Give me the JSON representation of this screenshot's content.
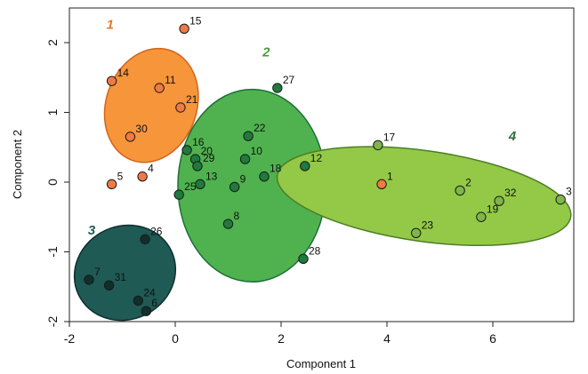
{
  "chart_data": {
    "type": "scatter",
    "title": "",
    "xlabel": "Component 1",
    "ylabel": "Component 2",
    "xlim": [
      -2,
      7.5
    ],
    "ylim": [
      -2,
      2.5
    ],
    "xticks": [
      -2,
      0,
      2,
      4,
      6
    ],
    "yticks": [
      -2,
      -1,
      0,
      1,
      2
    ],
    "xtick_labels": [
      "-2",
      "0",
      "2",
      "4",
      "6"
    ],
    "ytick_labels": [
      "-2",
      "-1",
      "0",
      "1",
      "2"
    ],
    "grid": false,
    "clusters": [
      {
        "label": "1",
        "fill": "#f7953a",
        "stroke": "#d4641a",
        "label_color": "#e07b32",
        "point_color": "#f07a45",
        "ellipse": {
          "cx": -0.45,
          "cy": 1.1,
          "rx": 1.1,
          "ry": 0.65,
          "angle_deg": 71
        }
      },
      {
        "label": "2",
        "fill": "#4fb24e",
        "stroke": "#1e6e3a",
        "label_color": "#4a9a3e",
        "point_color": "#1f7a3d",
        "ellipse": {
          "cx": 1.45,
          "cy": -0.05,
          "rx": 1.4,
          "ry": 1.38,
          "angle_deg": 0
        }
      },
      {
        "label": "3",
        "fill": "#1f5a55",
        "stroke": "#0d2f2c",
        "label_color": "#235e5a",
        "point_color": "#0f2f2b",
        "ellipse": {
          "cx": -0.95,
          "cy": -1.3,
          "rx": 0.97,
          "ry": 0.67,
          "angle_deg": 25
        }
      },
      {
        "label": "4",
        "fill": "#93c946",
        "stroke": "#4d7d26",
        "label_color": "#2f6f3a",
        "point_color": "#7fb64b",
        "ellipse": {
          "cx": 4.7,
          "cy": -0.2,
          "rx": 2.8,
          "ry": 0.65,
          "angle_deg": -8
        }
      }
    ],
    "cluster_label_positions": [
      {
        "label": "1",
        "x": -1.3,
        "y": 2.2
      },
      {
        "label": "2",
        "x": 1.65,
        "y": 1.8
      },
      {
        "label": "3",
        "x": -1.65,
        "y": -0.75
      },
      {
        "label": "4",
        "x": 6.3,
        "y": 0.6
      }
    ],
    "points": [
      {
        "id": "1",
        "cluster": 0,
        "x": 3.9,
        "y": -0.03
      },
      {
        "id": "2",
        "cluster": 3,
        "x": 5.38,
        "y": -0.12
      },
      {
        "id": "3",
        "cluster": 3,
        "x": 7.28,
        "y": -0.25
      },
      {
        "id": "4",
        "cluster": 0,
        "x": -0.62,
        "y": 0.08
      },
      {
        "id": "5",
        "cluster": 0,
        "x": -1.2,
        "y": -0.03
      },
      {
        "id": "6",
        "cluster": 2,
        "x": -0.55,
        "y": -1.85
      },
      {
        "id": "7",
        "cluster": 2,
        "x": -1.63,
        "y": -1.4
      },
      {
        "id": "8",
        "cluster": 1,
        "x": 1.0,
        "y": -0.6
      },
      {
        "id": "9",
        "cluster": 1,
        "x": 1.12,
        "y": -0.07
      },
      {
        "id": "10",
        "cluster": 1,
        "x": 1.32,
        "y": 0.33
      },
      {
        "id": "11",
        "cluster": 0,
        "x": -0.3,
        "y": 1.35
      },
      {
        "id": "12",
        "cluster": 1,
        "x": 2.45,
        "y": 0.23
      },
      {
        "id": "13",
        "cluster": 1,
        "x": 0.47,
        "y": -0.03
      },
      {
        "id": "14",
        "cluster": 0,
        "x": -1.2,
        "y": 1.45
      },
      {
        "id": "15",
        "cluster": 0,
        "x": 0.17,
        "y": 2.2
      },
      {
        "id": "16",
        "cluster": 1,
        "x": 0.22,
        "y": 0.46
      },
      {
        "id": "17",
        "cluster": 3,
        "x": 3.83,
        "y": 0.53
      },
      {
        "id": "18",
        "cluster": 1,
        "x": 1.68,
        "y": 0.08
      },
      {
        "id": "19",
        "cluster": 3,
        "x": 5.78,
        "y": -0.5
      },
      {
        "id": "20",
        "cluster": 1,
        "x": 0.38,
        "y": 0.33
      },
      {
        "id": "21",
        "cluster": 0,
        "x": 0.1,
        "y": 1.07
      },
      {
        "id": "22",
        "cluster": 1,
        "x": 1.38,
        "y": 0.66
      },
      {
        "id": "23",
        "cluster": 3,
        "x": 4.55,
        "y": -0.73
      },
      {
        "id": "24",
        "cluster": 2,
        "x": -0.7,
        "y": -1.7
      },
      {
        "id": "25",
        "cluster": 1,
        "x": 0.07,
        "y": -0.18
      },
      {
        "id": "26",
        "cluster": 2,
        "x": -0.57,
        "y": -0.82
      },
      {
        "id": "27",
        "cluster": 1,
        "x": 1.93,
        "y": 1.35
      },
      {
        "id": "28",
        "cluster": 1,
        "x": 2.42,
        "y": -1.1
      },
      {
        "id": "29",
        "cluster": 1,
        "x": 0.42,
        "y": 0.23
      },
      {
        "id": "30",
        "cluster": 0,
        "x": -0.85,
        "y": 0.65
      },
      {
        "id": "31",
        "cluster": 2,
        "x": -1.25,
        "y": -1.48
      },
      {
        "id": "32",
        "cluster": 3,
        "x": 6.12,
        "y": -0.27
      }
    ]
  }
}
